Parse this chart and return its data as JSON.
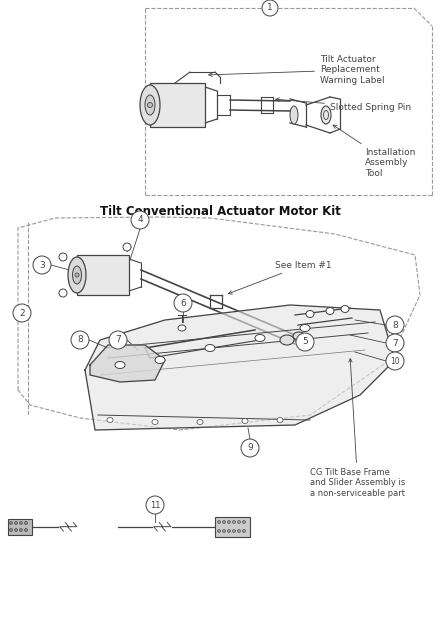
{
  "bg_color": "#ffffff",
  "lc": "#444444",
  "dc": "#999999",
  "title": "Tilt Conventional Actuator Motor Kit",
  "title_fontsize": 8.5,
  "callout_fontsize": 6.5,
  "label_fontsize": 6.5,
  "ann1": "Tilt Actuator\nReplacement\nWarning Label",
  "ann_slotted": "Slotted Spring Pin",
  "ann_install": "Installation\nAssembly\nTool",
  "ann_see": "See Item #1",
  "ann_cg": "CG Tilt Base Frame\nand Slider Assembly is\na non-serviceable part"
}
